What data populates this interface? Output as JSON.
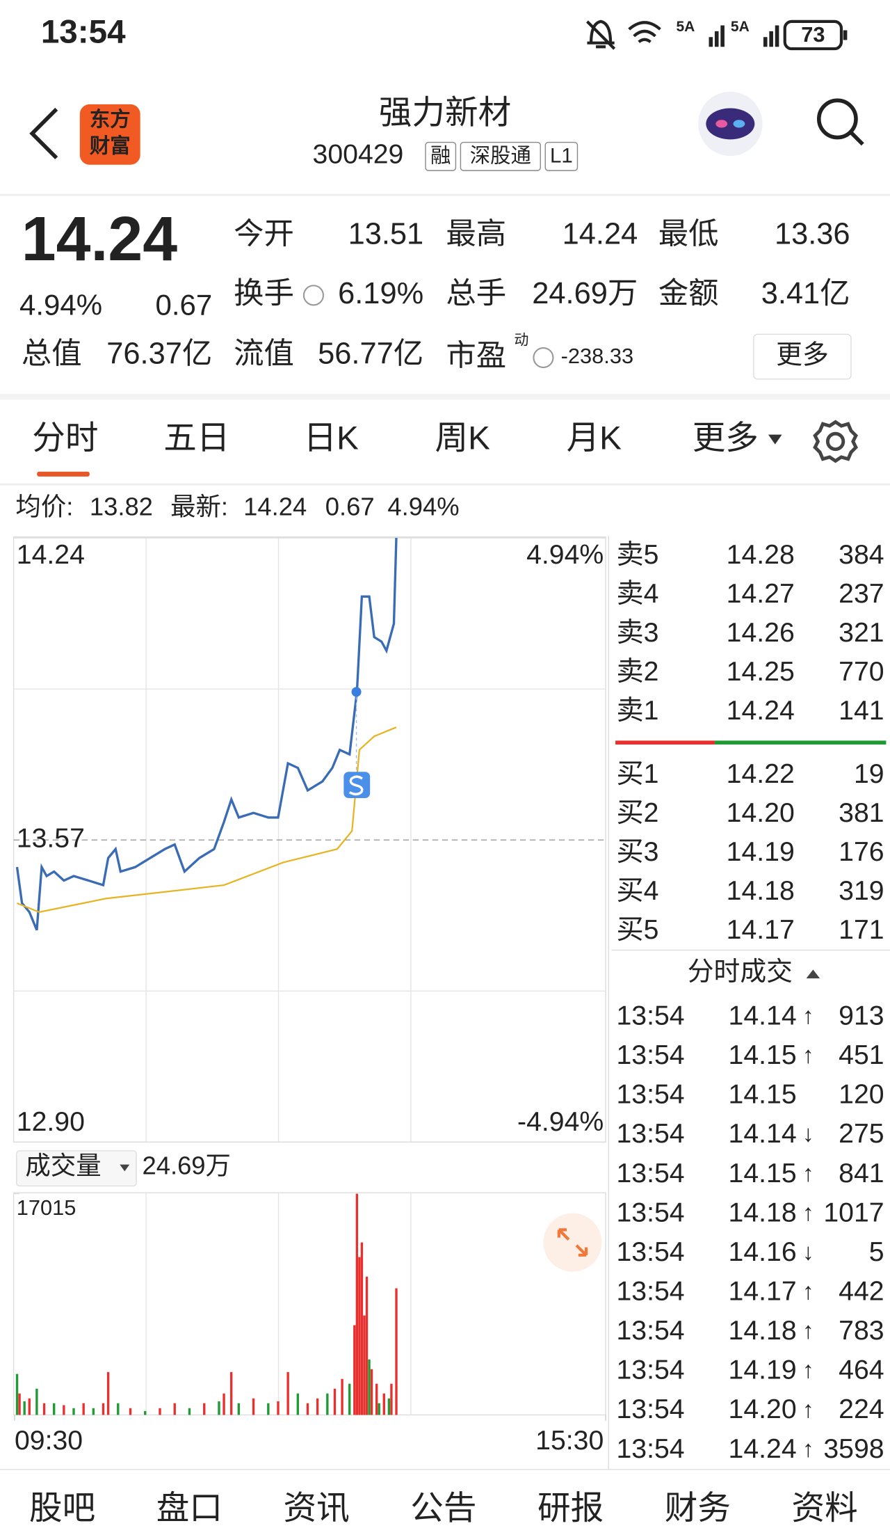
{
  "status_bar": {
    "time": "13:54",
    "signal_labels": [
      "5A",
      "5A"
    ],
    "battery": "73"
  },
  "header": {
    "logo": [
      "东方",
      "财富"
    ],
    "name": "强力新材",
    "code": "300429",
    "tags": [
      "融",
      "深股通",
      "L1"
    ]
  },
  "quote": {
    "price": "14.24",
    "change_pct": "4.94%",
    "change": "0.67",
    "fields": [
      {
        "label": "今开",
        "value": "13.51",
        "color": "#1e9b33"
      },
      {
        "label": "最高",
        "value": "14.24",
        "color": "#e8312f"
      },
      {
        "label": "最低",
        "value": "13.36",
        "color": "#1e9b33"
      },
      {
        "label": "换手",
        "value": "6.19%"
      },
      {
        "label": "总手",
        "value": "24.69万"
      },
      {
        "label": "金额",
        "value": "3.41亿"
      },
      {
        "label": "总值",
        "value": "76.37亿"
      },
      {
        "label": "流值",
        "value": "56.77亿"
      },
      {
        "label": "市盈",
        "superscript": "动",
        "value": "-238.33"
      }
    ],
    "more": "更多"
  },
  "tabs": {
    "items": [
      "分时",
      "五日",
      "日K",
      "周K",
      "月K",
      "更多"
    ],
    "active": 0
  },
  "chart_header": {
    "avg_label": "均价:",
    "avg": "13.82",
    "latest_label": "最新:",
    "latest": "14.24",
    "change": "0.67",
    "change_pct": "4.94%"
  },
  "chart_data": [
    {
      "type": "line",
      "xlim": [
        0,
        240
      ],
      "ylim": [
        12.9,
        14.24
      ],
      "yticks": [
        {
          "value": 12.9,
          "label": "12.90"
        },
        13.57,
        14.24
      ],
      "y2lim": [
        -4.94,
        4.94
      ],
      "y2ticks": [
        {
          "value": -4.94,
          "label": "-4.94%"
        },
        {
          "value": 4.94,
          "label": "4.94%"
        }
      ],
      "series": [
        {
          "color": "#3a6cb5",
          "x": [
            1,
            3,
            6,
            9,
            11,
            13,
            16,
            20,
            24,
            30,
            36,
            38,
            41,
            43,
            49,
            55,
            61,
            65,
            69,
            75,
            81,
            85,
            88,
            91,
            97,
            103,
            107,
            111,
            115,
            119,
            125,
            129,
            132,
            136,
            139,
            141,
            144,
            146,
            149,
            151,
            154,
            155
          ],
          "values": [
            13.51,
            13.43,
            13.41,
            13.37,
            13.51,
            13.49,
            13.5,
            13.48,
            13.49,
            13.48,
            13.47,
            13.53,
            13.55,
            13.5,
            13.51,
            13.53,
            13.55,
            13.56,
            13.5,
            13.53,
            13.55,
            13.61,
            13.66,
            13.62,
            13.63,
            13.62,
            13.62,
            13.74,
            13.73,
            13.68,
            13.7,
            13.73,
            13.77,
            13.76,
            13.9,
            14.11,
            14.11,
            14.02,
            14.01,
            13.99,
            14.05,
            14.24
          ]
        },
        {
          "color": "#e6b422",
          "x": [
            1,
            10,
            37,
            85,
            109,
            131,
            137,
            140,
            146,
            155
          ],
          "values": [
            13.43,
            13.41,
            13.44,
            13.47,
            13.52,
            13.55,
            13.59,
            13.77,
            13.8,
            13.82
          ]
        }
      ]
    },
    {
      "type": "bar",
      "title": "成交量",
      "total": "24.69万",
      "xlim": [
        0,
        240
      ],
      "ylim": [
        0,
        17015
      ],
      "yticks": [
        17015
      ],
      "xticks": [
        {
          "value": 0,
          "label": "09:30"
        },
        {
          "value": 240,
          "label": "15:30"
        }
      ],
      "x": [
        1,
        2,
        4,
        6,
        9,
        12,
        16,
        20,
        24,
        28,
        32,
        36,
        38,
        42,
        47,
        53,
        59,
        65,
        71,
        77,
        83,
        85,
        88,
        91,
        97,
        103,
        107,
        111,
        115,
        119,
        123,
        127,
        130,
        133,
        136,
        138,
        139,
        140,
        141,
        142,
        143,
        144,
        145,
        147,
        148,
        150,
        152,
        153,
        155
      ],
      "values": [
        3150,
        1650,
        1050,
        1270,
        2020,
        900,
        900,
        750,
        520,
        900,
        520,
        900,
        3300,
        900,
        520,
        300,
        520,
        900,
        520,
        900,
        1050,
        1650,
        3300,
        900,
        1270,
        900,
        1050,
        3300,
        1650,
        900,
        1270,
        1650,
        2020,
        2770,
        2400,
        6900,
        17015,
        12140,
        13270,
        7650,
        10640,
        4270,
        3520,
        2400,
        900,
        1650,
        1270,
        2400,
        9740
      ],
      "colors": [
        "#1e9b33",
        "#e8312f",
        "#1e9b33",
        "#e8312f",
        "#1e9b33",
        "#e8312f",
        "#1e9b33",
        "#e8312f",
        "#1e9b33",
        "#e8312f",
        "#1e9b33",
        "#e8312f",
        "#e8312f",
        "#1e9b33",
        "#e8312f",
        "#1e9b33",
        "#e8312f",
        "#e8312f",
        "#1e9b33",
        "#e8312f",
        "#1e9b33",
        "#e8312f",
        "#e8312f",
        "#1e9b33",
        "#e8312f",
        "#1e9b33",
        "#e8312f",
        "#e8312f",
        "#1e9b33",
        "#e8312f",
        "#e8312f",
        "#1e9b33",
        "#e8312f",
        "#e8312f",
        "#1e9b33",
        "#e8312f",
        "#e8312f",
        "#e8312f",
        "#e8312f",
        "#e8312f",
        "#e8312f",
        "#1e9b33",
        "#e8312f",
        "#e8312f",
        "#1e9b33",
        "#e8312f",
        "#1e9b33",
        "#e8312f",
        "#e8312f"
      ]
    }
  ],
  "order_book": {
    "asks": [
      {
        "label": "卖5",
        "price": "14.28",
        "volume": "384"
      },
      {
        "label": "卖4",
        "price": "14.27",
        "volume": "237"
      },
      {
        "label": "卖3",
        "price": "14.26",
        "volume": "321"
      },
      {
        "label": "卖2",
        "price": "14.25",
        "volume": "770"
      },
      {
        "label": "卖1",
        "price": "14.24",
        "volume": "141"
      }
    ],
    "bids": [
      {
        "label": "买1",
        "price": "14.22",
        "volume": "19"
      },
      {
        "label": "买2",
        "price": "14.20",
        "volume": "381"
      },
      {
        "label": "买3",
        "price": "14.19",
        "volume": "176"
      },
      {
        "label": "买4",
        "price": "14.18",
        "volume": "319"
      },
      {
        "label": "买5",
        "price": "14.17",
        "volume": "171"
      }
    ]
  },
  "trades": {
    "title": "分时成交",
    "rows": [
      {
        "time": "13:54",
        "price": "14.14",
        "arrow": "↑",
        "volume": "913",
        "side": "buy"
      },
      {
        "time": "13:54",
        "price": "14.15",
        "arrow": "↑",
        "volume": "451",
        "side": "buy"
      },
      {
        "time": "13:54",
        "price": "14.15",
        "volume": "120",
        "side": "buy"
      },
      {
        "time": "13:54",
        "price": "14.14",
        "arrow": "↓",
        "volume": "275",
        "side": "sell"
      },
      {
        "time": "13:54",
        "price": "14.15",
        "arrow": "↑",
        "volume": "841",
        "side": "buy"
      },
      {
        "time": "13:54",
        "price": "14.18",
        "arrow": "↑",
        "volume": "1017",
        "side": "buy"
      },
      {
        "time": "13:54",
        "price": "14.16",
        "arrow": "↓",
        "volume": "5",
        "side": "sell"
      },
      {
        "time": "13:54",
        "price": "14.17",
        "arrow": "↑",
        "volume": "442",
        "side": "sell"
      },
      {
        "time": "13:54",
        "price": "14.18",
        "arrow": "↑",
        "volume": "783",
        "side": "buy"
      },
      {
        "time": "13:54",
        "price": "14.19",
        "arrow": "↑",
        "volume": "464",
        "side": "buy"
      },
      {
        "time": "13:54",
        "price": "14.20",
        "arrow": "↑",
        "volume": "224",
        "side": "buy"
      },
      {
        "time": "13:54",
        "price": "14.24",
        "arrow": "↑",
        "volume": "3598",
        "side": "buy"
      }
    ]
  },
  "bottom_nav": {
    "items": [
      "股吧",
      "盘口",
      "资讯",
      "公告",
      "研报",
      "财务",
      "资料"
    ],
    "active": 0
  }
}
